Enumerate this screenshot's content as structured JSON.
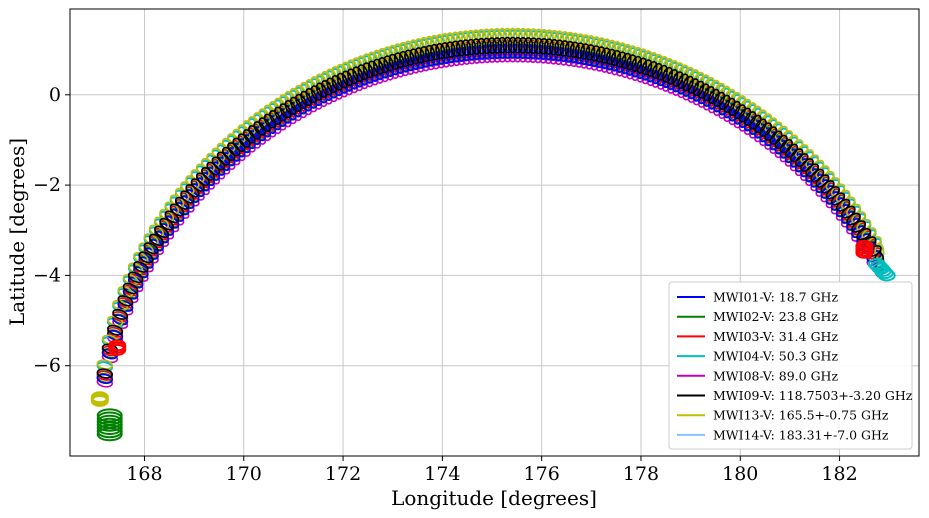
{
  "chart_data": {
    "type": "scatter",
    "title": "",
    "xlabel": "Longitude [degrees]",
    "ylabel": "Latitude [degrees]",
    "xlim": [
      166.5,
      183.6
    ],
    "ylim": [
      -8.0,
      1.9
    ],
    "xticks": [
      "168",
      "170",
      "172",
      "174",
      "176",
      "178",
      "180",
      "182"
    ],
    "yticks": [
      "0",
      "−2",
      "−4",
      "−6"
    ],
    "grid": true,
    "legend_position": "lower-right",
    "description_of_marks": "footprint ellipses along an arc",
    "series": [
      {
        "name": "MWI01-V: 18.7 GHz",
        "color": "#0000ff",
        "offset": -0.12,
        "x": [
          167.3,
          182.6
        ],
        "y": [
          -7.3,
          -3.6
        ]
      },
      {
        "name": "MWI02-V: 23.8 GHz",
        "color": "#008000",
        "offset": -0.1,
        "x": [
          167.3,
          182.6
        ],
        "y": [
          -7.3,
          -3.6
        ]
      },
      {
        "name": "MWI03-V: 31.4 GHz",
        "color": "#ff0000",
        "offset": -0.05,
        "x": [
          167.4,
          182.55
        ],
        "y": [
          -5.6,
          -3.5
        ]
      },
      {
        "name": "MWI04-V: 50.3 GHz",
        "color": "#00bfbf",
        "offset": 0.15,
        "x": [
          167.3,
          182.9
        ],
        "y": [
          -6.8,
          -4.0
        ]
      },
      {
        "name": "MWI08-V: 89.0 GHz",
        "color": "#bf00bf",
        "offset": -0.2,
        "x": [
          167.5,
          182.3
        ],
        "y": [
          -6.3,
          -3.0
        ]
      },
      {
        "name": "MWI09-V: 118.7503+-3.20 GHz",
        "color": "#000000",
        "offset": 0.0,
        "x": [
          167.45,
          182.4
        ],
        "y": [
          -6.0,
          -3.1
        ]
      },
      {
        "name": "MWI13-V: 165.5+-0.75 GHz",
        "color": "#bfbf00",
        "offset": 0.2,
        "x": [
          167.0,
          182.6
        ],
        "y": [
          -6.8,
          -2.7
        ]
      },
      {
        "name": "MWI14-V: 183.31+-7.0 GHz",
        "color": "#87c3ff",
        "offset": 0.17,
        "x": [
          167.1,
          182.6
        ],
        "y": [
          -6.7,
          -2.8
        ]
      }
    ]
  }
}
